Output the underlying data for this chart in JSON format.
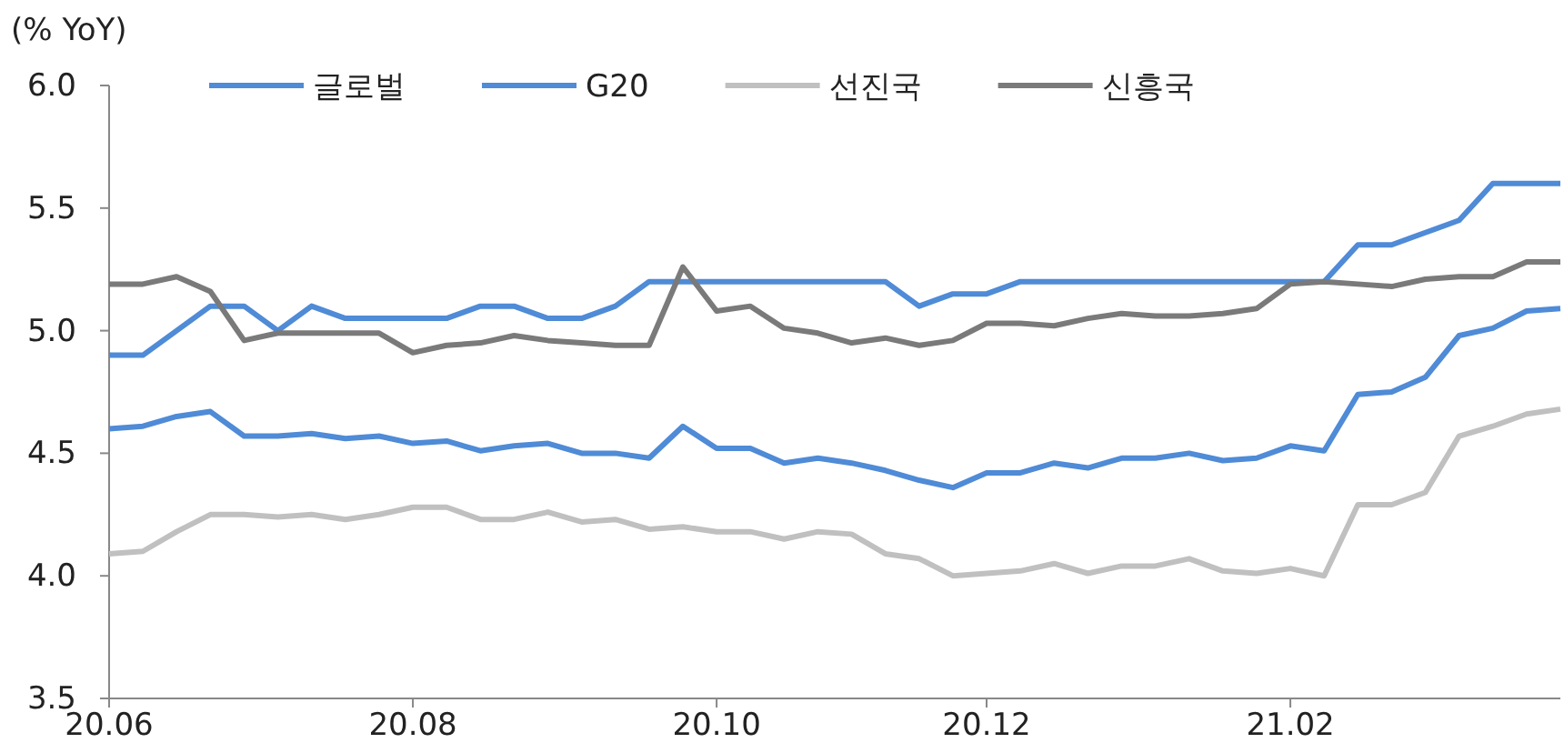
{
  "chart_data": {
    "type": "line",
    "ylabel": "(% YoY)",
    "categories": [
      "20.06",
      null,
      null,
      null,
      null,
      null,
      null,
      null,
      null,
      "20.08",
      null,
      null,
      null,
      null,
      null,
      null,
      null,
      null,
      "20.10",
      null,
      null,
      null,
      null,
      null,
      null,
      null,
      "20.12",
      null,
      null,
      null,
      null,
      null,
      null,
      null,
      null,
      "21.02",
      null,
      null,
      null,
      null,
      null,
      null,
      null,
      null
    ],
    "series": [
      {
        "name": "글로벌",
        "color": "#4f8bd6",
        "values": [
          4.9,
          4.9,
          5.0,
          5.1,
          5.1,
          5.0,
          5.1,
          5.05,
          5.05,
          5.05,
          5.05,
          5.1,
          5.1,
          5.05,
          5.05,
          5.1,
          5.2,
          5.2,
          5.2,
          5.2,
          5.2,
          5.2,
          5.2,
          5.2,
          5.1,
          5.15,
          5.15,
          5.2,
          5.2,
          5.2,
          5.2,
          5.2,
          5.2,
          5.2,
          5.2,
          5.2,
          5.2,
          5.35,
          5.35,
          5.4,
          5.45,
          5.6,
          5.6,
          5.6
        ]
      },
      {
        "name": "G20",
        "color": "#4f8bd6",
        "values": [
          4.6,
          4.61,
          4.65,
          4.67,
          4.57,
          4.57,
          4.58,
          4.56,
          4.57,
          4.54,
          4.55,
          4.51,
          4.53,
          4.54,
          4.5,
          4.5,
          4.48,
          4.61,
          4.52,
          4.52,
          4.46,
          4.48,
          4.46,
          4.43,
          4.39,
          4.36,
          4.42,
          4.42,
          4.46,
          4.44,
          4.48,
          4.48,
          4.5,
          4.47,
          4.48,
          4.53,
          4.51,
          4.74,
          4.75,
          4.81,
          4.98,
          5.01,
          5.08,
          5.09
        ]
      },
      {
        "name": "선진국",
        "color": "#c0c0c0",
        "values": [
          4.09,
          4.1,
          4.18,
          4.25,
          4.25,
          4.24,
          4.25,
          4.23,
          4.25,
          4.28,
          4.28,
          4.23,
          4.23,
          4.26,
          4.22,
          4.23,
          4.19,
          4.2,
          4.18,
          4.18,
          4.15,
          4.18,
          4.17,
          4.09,
          4.07,
          4.0,
          4.01,
          4.02,
          4.05,
          4.01,
          4.04,
          4.04,
          4.07,
          4.02,
          4.01,
          4.03,
          4.0,
          4.29,
          4.29,
          4.34,
          4.57,
          4.61,
          4.66,
          4.68
        ]
      },
      {
        "name": "신흥국",
        "color": "#7a7a7a",
        "values": [
          5.19,
          5.19,
          5.22,
          5.16,
          4.96,
          4.99,
          4.99,
          4.99,
          4.99,
          4.91,
          4.94,
          4.95,
          4.98,
          4.96,
          4.95,
          4.94,
          4.94,
          5.26,
          5.08,
          5.1,
          5.01,
          4.99,
          4.95,
          4.97,
          4.94,
          4.96,
          5.03,
          5.03,
          5.02,
          5.05,
          5.07,
          5.06,
          5.06,
          5.07,
          5.09,
          5.19,
          5.2,
          5.19,
          5.18,
          5.21,
          5.22,
          5.22,
          5.28,
          5.28
        ]
      }
    ],
    "ylim": [
      3.5,
      6.0
    ],
    "yticks": [
      {
        "value": 3.5,
        "label": "3.5"
      },
      {
        "value": 4.0,
        "label": "4.0"
      },
      {
        "value": 4.5,
        "label": "4.5"
      },
      {
        "value": 5.0,
        "label": "5.0"
      },
      {
        "value": 5.5,
        "label": "5.5"
      },
      {
        "value": 6.0,
        "label": "6.0"
      }
    ],
    "legend": "top",
    "grid": false,
    "marker": "none",
    "line_style": "solid"
  }
}
